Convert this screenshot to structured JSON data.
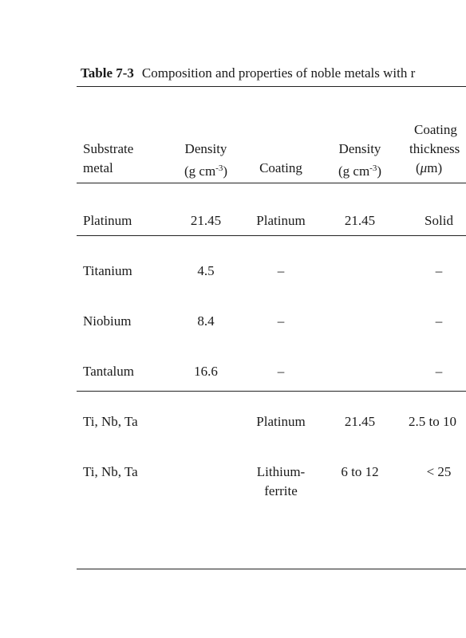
{
  "caption": {
    "label": "Table 7-3",
    "text": "Composition and properties of noble metals with r"
  },
  "headers": {
    "substrate": [
      "Substrate",
      "metal"
    ],
    "density1": [
      "Density",
      "(g cm",
      "-3",
      ")"
    ],
    "coating": "Coating",
    "density2": [
      "Density",
      "(g cm",
      "-3",
      ")"
    ],
    "coating_thickness": [
      "Coating",
      "thickness",
      "(",
      "μ",
      "m)"
    ]
  },
  "rows": [
    {
      "substrate": "Platinum",
      "density": "21.45",
      "coating": "Platinum",
      "coating_density": "21.45",
      "thickness": "Solid"
    },
    {
      "substrate": "Titanium",
      "density": "4.5",
      "coating": "–",
      "coating_density": "",
      "thickness": "–"
    },
    {
      "substrate": "Niobium",
      "density": "8.4",
      "coating": "–",
      "coating_density": "",
      "thickness": "–"
    },
    {
      "substrate": "Tantalum",
      "density": "16.6",
      "coating": "–",
      "coating_density": "",
      "thickness": "–"
    },
    {
      "substrate": "Ti, Nb, Ta",
      "density": "",
      "coating": "Platinum",
      "coating_density": "21.45",
      "thickness": "2.5 to 10"
    },
    {
      "substrate": "Ti, Nb, Ta",
      "density": "",
      "coating": [
        "Lithium-",
        "ferrite"
      ],
      "coating_density": "6 to 12",
      "thickness": "< 25"
    }
  ]
}
